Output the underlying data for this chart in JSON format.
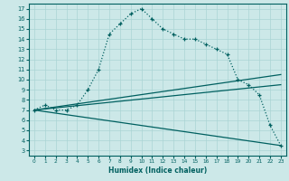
{
  "xlabel": "Humidex (Indice chaleur)",
  "bg_color": "#cce8e8",
  "grid_color": "#aad4d4",
  "line_color": "#006060",
  "line1": {
    "x": [
      0,
      1,
      2,
      3,
      4,
      5,
      6,
      7,
      8,
      9,
      10,
      11,
      12,
      13,
      14,
      15,
      16,
      17,
      18,
      19,
      20,
      21,
      22,
      23
    ],
    "y": [
      7,
      7.5,
      7,
      7,
      7.5,
      9,
      11,
      14.5,
      15.5,
      16.5,
      17,
      16,
      15,
      14.5,
      14,
      14,
      13.5,
      13,
      12.5,
      10,
      9.5,
      8.5,
      5.5,
      3.5
    ]
  },
  "line2": {
    "x": [
      0,
      23
    ],
    "y": [
      7,
      10.5
    ]
  },
  "line3": {
    "x": [
      0,
      23
    ],
    "y": [
      7,
      9.5
    ]
  },
  "line4": {
    "x": [
      0,
      23
    ],
    "y": [
      7,
      3.5
    ]
  },
  "xlim": [
    -0.5,
    23.5
  ],
  "ylim": [
    2.5,
    17.5
  ],
  "xticks": [
    0,
    1,
    2,
    3,
    4,
    5,
    6,
    7,
    8,
    9,
    10,
    11,
    12,
    13,
    14,
    15,
    16,
    17,
    18,
    19,
    20,
    21,
    22,
    23
  ],
  "yticks": [
    3,
    4,
    5,
    6,
    7,
    8,
    9,
    10,
    11,
    12,
    13,
    14,
    15,
    16,
    17
  ]
}
